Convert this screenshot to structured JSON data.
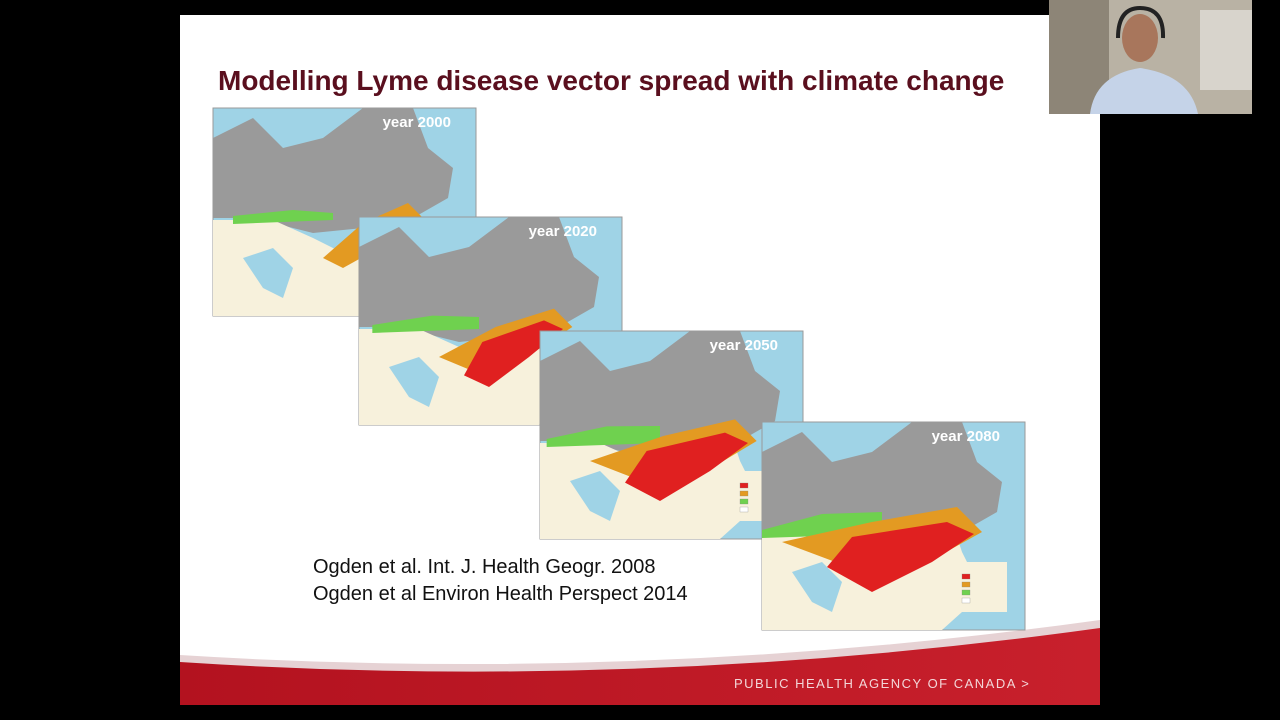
{
  "slide": {
    "title": "Modelling Lyme disease vector spread with climate change",
    "maps": [
      {
        "label": "year 2000"
      },
      {
        "label": "year 2020"
      },
      {
        "label": "year 2050"
      },
      {
        "label": "year 2080"
      }
    ],
    "citations": [
      "Ogden et al. Int. J. Health Geogr. 2008",
      "Ogden et al Environ Health Perspect 2014"
    ],
    "footer": "PUBLIC HEALTH AGENCY OF CANADA >"
  }
}
